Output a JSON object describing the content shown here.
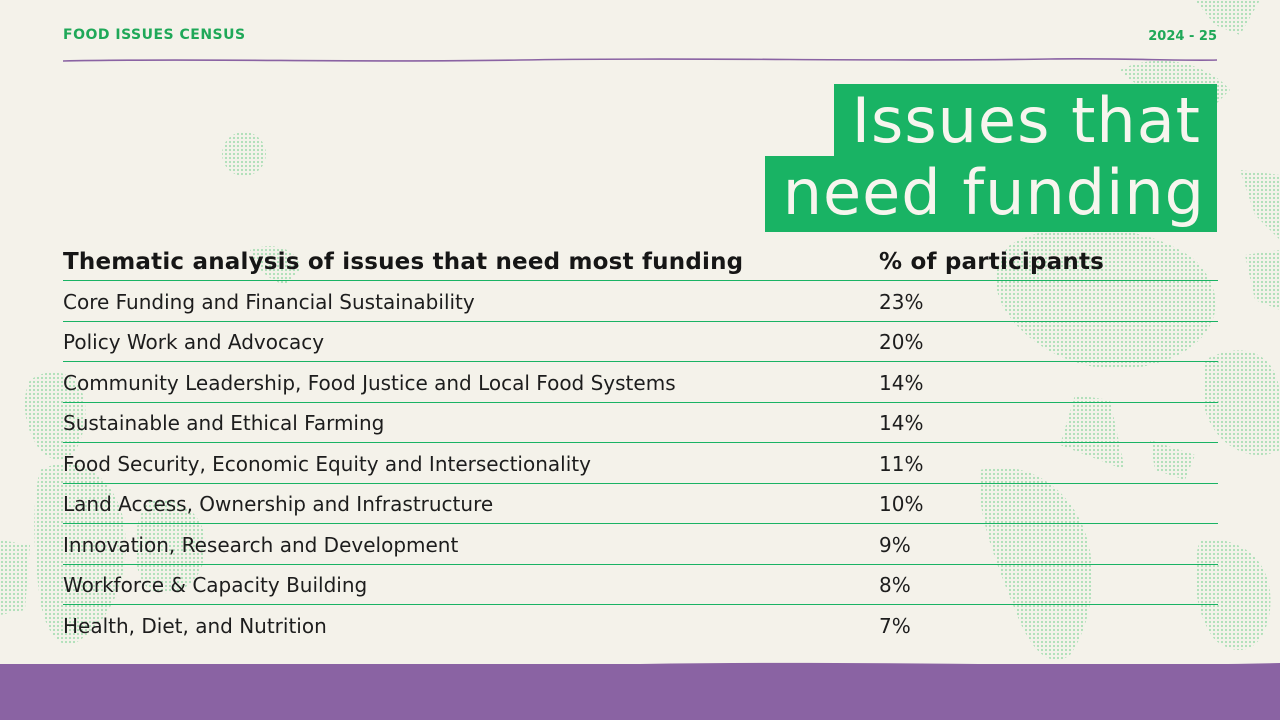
{
  "header": {
    "source": "FOOD ISSUES CENSUS",
    "period": "2024 - 25"
  },
  "title": {
    "line1": "Issues that",
    "line2": "need funding"
  },
  "table": {
    "headers": {
      "theme": "Thematic analysis of issues that need most funding",
      "percent": "% of participants"
    },
    "rows": [
      {
        "theme": "Core Funding and Financial Sustainability",
        "percent": "23%"
      },
      {
        "theme": "Policy Work and Advocacy",
        "percent": "20%"
      },
      {
        "theme": "Community Leadership, Food Justice and Local Food Systems",
        "percent": "14%"
      },
      {
        "theme": "Sustainable and Ethical Farming",
        "percent": "14%"
      },
      {
        "theme": "Food Security, Economic Equity and Intersectionality",
        "percent": "11%"
      },
      {
        "theme": "Land Access, Ownership and Infrastructure",
        "percent": "10%"
      },
      {
        "theme": "Innovation, Research and Development",
        "percent": "9%"
      },
      {
        "theme": "Workforce & Capacity Building",
        "percent": "8%"
      },
      {
        "theme": "Health, Diet, and Nutrition",
        "percent": "7%"
      }
    ]
  },
  "colors": {
    "accent_green": "#19b364",
    "label_green": "#1fa858",
    "footer_purple": "#8a63a3",
    "background": "#f4f2ea"
  }
}
